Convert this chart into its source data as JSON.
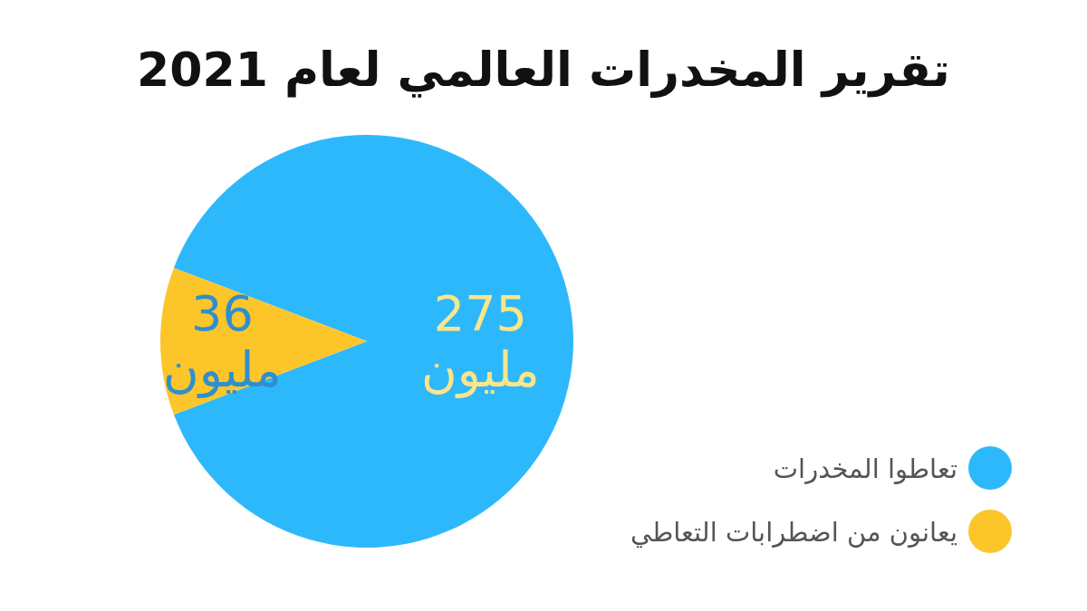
{
  "chart_data": {
    "type": "pie",
    "title": "تقرير المخدرات العالمي لعام 2021",
    "categories": [
      "تعاطوا المخدرات",
      "يعانون من اضطرابات التعاطي"
    ],
    "values": [
      275,
      36
    ],
    "colors": [
      "#2eb8fc",
      "#fcc62a"
    ],
    "value_labels": [
      "275\nمليون",
      "36\nمليون"
    ],
    "legend": "bottom right"
  }
}
